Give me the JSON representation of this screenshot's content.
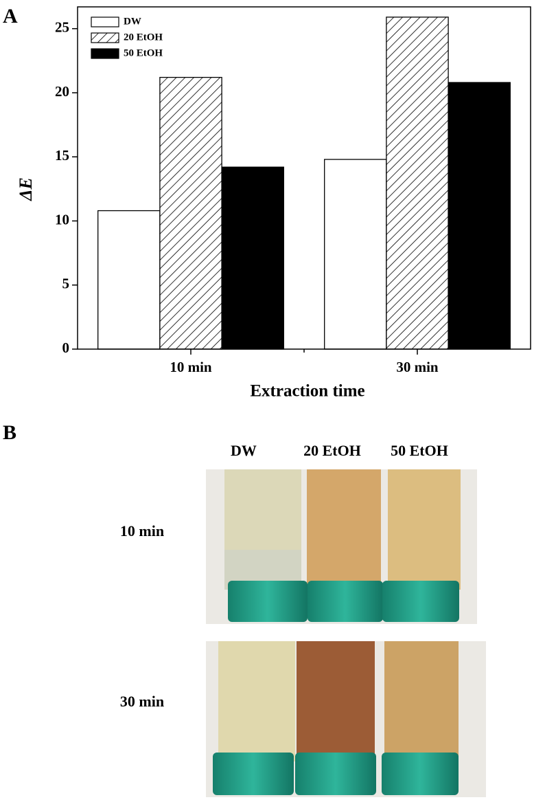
{
  "chart_data": {
    "type": "bar",
    "y_label": "ΔE",
    "x_label": "Extraction time",
    "categories": [
      "10 min",
      "30 min"
    ],
    "series": [
      {
        "name": "DW",
        "color": "#ffffff",
        "pattern": "solid",
        "values": [
          10.8,
          14.8
        ]
      },
      {
        "name": "20 EtOH",
        "color": "#000000",
        "pattern": "hatch",
        "values": [
          21.2,
          25.9
        ]
      },
      {
        "name": "50 EtOH",
        "color": "#000000",
        "pattern": "solid",
        "values": [
          14.2,
          20.8
        ]
      }
    ],
    "ylim": [
      0,
      26.7
    ],
    "yticks": [
      0,
      5,
      10,
      15,
      20,
      25
    ],
    "legend": "upper left"
  },
  "panel_labels": [
    "A",
    "B"
  ],
  "photo_grid": {
    "columns": [
      "DW",
      "20 EtOH",
      "50 EtOH"
    ],
    "rows": [
      "10 min",
      "30 min"
    ]
  }
}
